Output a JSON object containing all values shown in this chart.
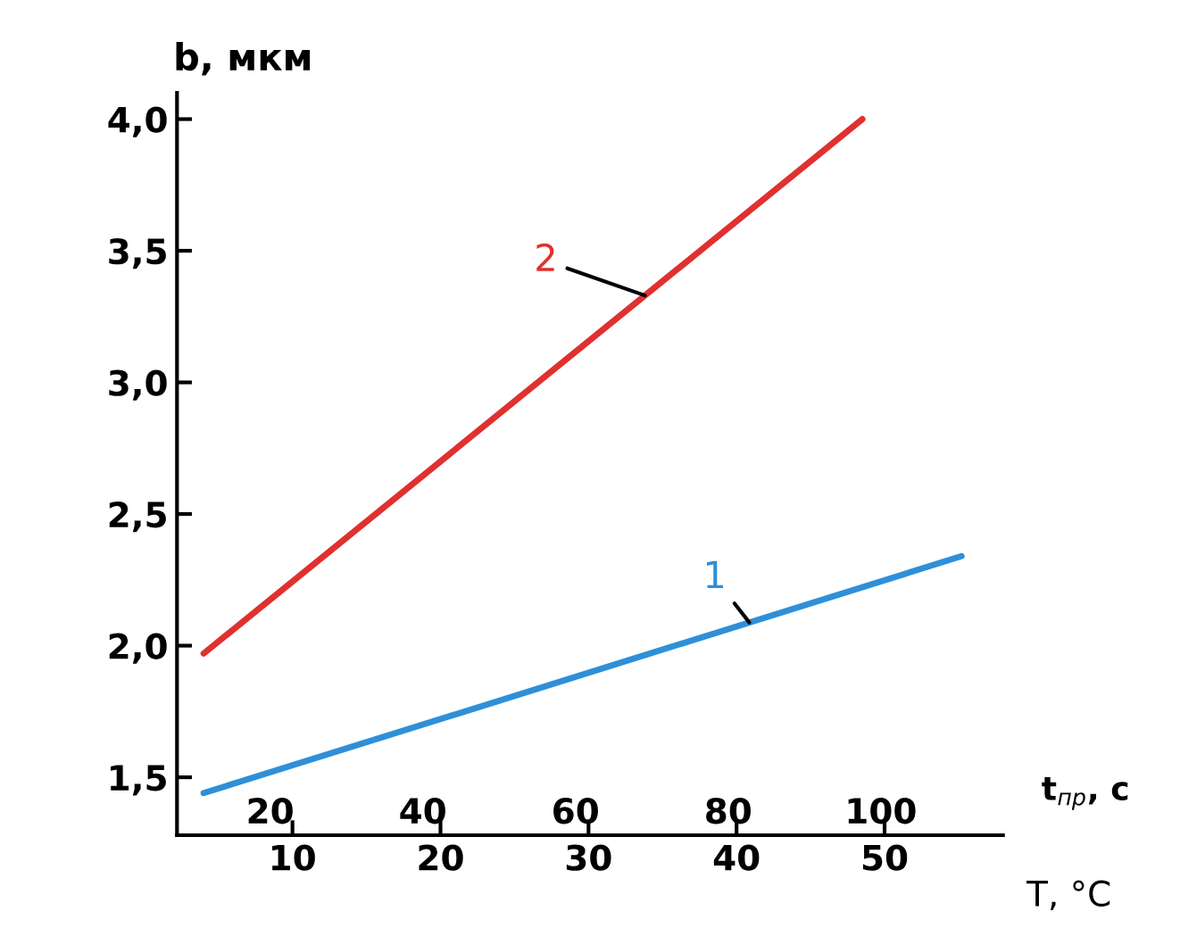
{
  "chart_data": {
    "type": "line",
    "series": [
      {
        "name": "1",
        "color": "#2f8fd8",
        "x": [
          4,
          55.2
        ],
        "values": [
          1.44,
          2.34
        ]
      },
      {
        "name": "2",
        "color": "#e03030",
        "x": [
          4,
          48.5
        ],
        "values": [
          1.97,
          4.0
        ]
      }
    ],
    "xlabel": "T, °C",
    "x2label": "t$_{пр}$, с",
    "ylabel": "b, мкм",
    "xlim": [
      2.2,
      58
    ],
    "xticks": [
      10,
      20,
      30,
      40,
      50
    ],
    "x2lim": [
      7.8,
      116
    ],
    "x2ticks": [
      20,
      40,
      60,
      80,
      100
    ],
    "ylim": [
      1.28,
      4.1
    ],
    "yticks": [
      {
        "value": 1.5,
        "label": "1,5"
      },
      {
        "value": 2.0,
        "label": "2,0"
      },
      {
        "value": 2.5,
        "label": "2,5"
      },
      {
        "value": 3.0,
        "label": "3,0"
      },
      {
        "value": 3.5,
        "label": "3,5"
      },
      {
        "value": 4.0,
        "label": "4,0"
      }
    ],
    "grid": false,
    "legend": false,
    "marker": "none",
    "line_style": "solid"
  }
}
